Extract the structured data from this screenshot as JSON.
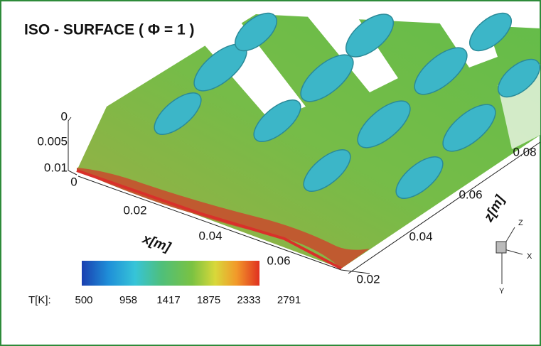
{
  "title": "ISO - SURFACE ( Φ = 1 )",
  "y_axis": {
    "ticks": [
      "0",
      "0.005",
      "0.01"
    ]
  },
  "x_axis": {
    "label": "x[m]",
    "ticks": [
      "0",
      "0.02",
      "0.04",
      "0.06"
    ]
  },
  "z_axis": {
    "label": "z[m]",
    "ticks": [
      "0.02",
      "0.04",
      "0.06",
      "0.08"
    ]
  },
  "colorbar": {
    "label": "T[K]:",
    "ticks": [
      500,
      958,
      1417,
      1875,
      2333,
      2791
    ]
  },
  "triad": {
    "labels": [
      "Z",
      "X",
      "Y"
    ]
  }
}
